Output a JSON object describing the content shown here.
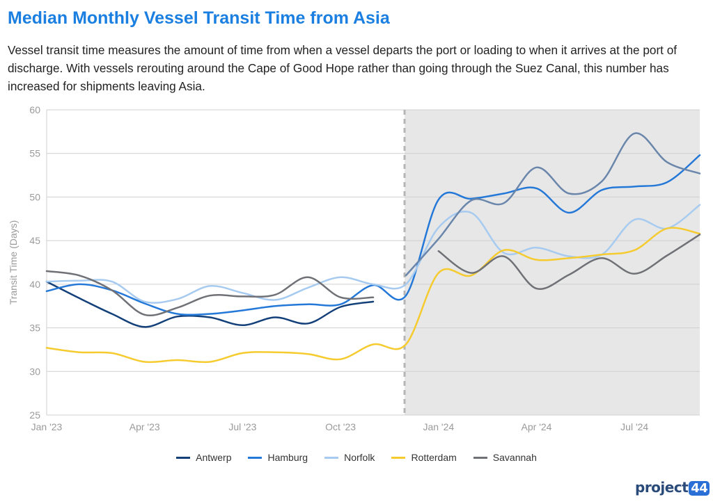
{
  "header": {
    "title": "Median Monthly Vessel Transit Time from Asia",
    "description": "Vessel transit time measures the amount of time from when a vessel departs the port or loading to when it arrives at the port of discharge. With vessels rerouting around the Cape of Good Hope rather than going through the Suez Canal, this number has increased for shipments leaving Asia."
  },
  "logo": {
    "text": "project",
    "badge": "44"
  },
  "chart_data": {
    "type": "line",
    "title": "Median Monthly Vessel Transit Time from Asia",
    "xlabel": "",
    "ylabel": "Transit Time (Days)",
    "ylim": [
      25,
      60
    ],
    "yticks": [
      25,
      30,
      35,
      40,
      45,
      50,
      55,
      60
    ],
    "x_tick_labels": [
      "Jan '23",
      "Apr '23",
      "Jul '23",
      "Oct '23",
      "Jan '24",
      "Apr '24",
      "Jul '24"
    ],
    "x": [
      "Jan '23",
      "Feb '23",
      "Mar '23",
      "Apr '23",
      "May '23",
      "Jun '23",
      "Jul '23",
      "Aug '23",
      "Sep '23",
      "Oct '23",
      "Nov '23",
      "Dec '23",
      "Jan '24",
      "Feb '24",
      "Mar '24",
      "Apr '24",
      "May '24",
      "Jun '24",
      "Jul '24",
      "Aug '24",
      "Sep '24"
    ],
    "grid": "horizontal",
    "legend_position": "bottom",
    "shaded_region_start": "Dec '23",
    "series": [
      {
        "name": "Antwerp",
        "color": "#14407a",
        "values": [
          40.3,
          38.4,
          36.6,
          35.1,
          36.3,
          36.2,
          35.3,
          36.2,
          35.5,
          37.4,
          38.0,
          null,
          null,
          null,
          null,
          null,
          null,
          null,
          null,
          null,
          null
        ]
      },
      {
        "name": "Hamburg",
        "color": "#2478d8",
        "values": [
          39.2,
          40.0,
          39.3,
          37.8,
          36.6,
          36.6,
          37.0,
          37.5,
          37.7,
          37.7,
          39.9,
          38.7,
          49.7,
          49.8,
          50.4,
          51.0,
          48.2,
          50.8,
          51.2,
          51.7,
          54.8
        ]
      },
      {
        "name": "Norfolk",
        "color": "#a7cbf0",
        "values": [
          40.3,
          40.4,
          40.3,
          38.0,
          38.3,
          39.8,
          39.0,
          38.2,
          39.6,
          40.8,
          40.0,
          40.0,
          46.5,
          48.2,
          43.6,
          44.2,
          43.2,
          43.4,
          47.4,
          46.4,
          49.1
        ]
      },
      {
        "name": "Rotterdam",
        "color": "#f5cb2f",
        "values": [
          32.7,
          32.2,
          32.1,
          31.1,
          31.3,
          31.1,
          32.1,
          32.2,
          32.0,
          31.4,
          33.1,
          33.1,
          41.3,
          41.0,
          43.9,
          42.8,
          43.0,
          43.4,
          43.9,
          46.4,
          45.8
        ]
      },
      {
        "name": "Savannah",
        "color": "#6f7176",
        "values": [
          41.5,
          41.0,
          39.3,
          36.5,
          37.3,
          38.7,
          38.6,
          38.8,
          40.8,
          38.5,
          38.5,
          null,
          43.8,
          41.3,
          43.2,
          39.5,
          41.1,
          43.0,
          41.2,
          43.3,
          45.7
        ]
      },
      {
        "name": "",
        "color": "#6a86ab",
        "values": [
          null,
          null,
          null,
          null,
          null,
          null,
          null,
          null,
          null,
          null,
          null,
          41.0,
          45.2,
          49.6,
          49.3,
          53.4,
          50.4,
          51.8,
          57.3,
          54.0,
          52.7
        ]
      }
    ]
  }
}
